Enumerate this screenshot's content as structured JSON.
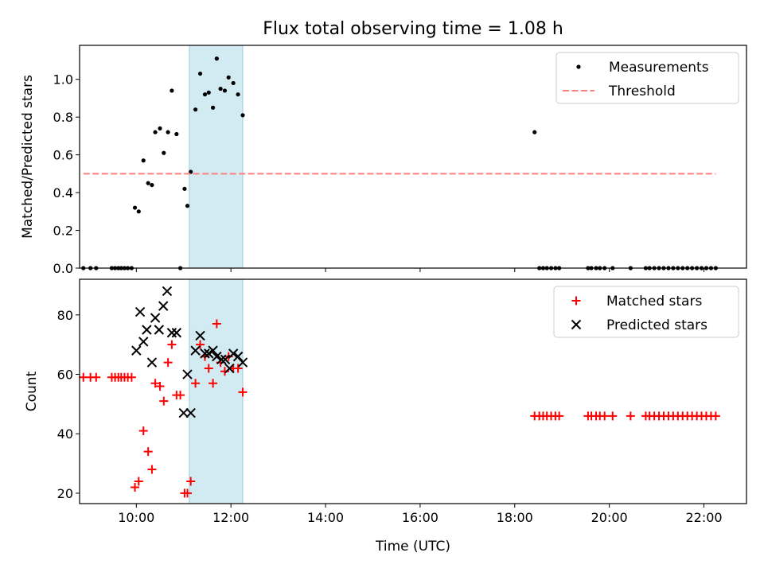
{
  "title": "Flux total observing time = 1.08 h",
  "chart_data": [
    {
      "type": "scatter",
      "panel": "top",
      "title": "Flux total observing time = 1.08 h",
      "xlabel": "",
      "ylabel": "Matched/Predicted stars",
      "xlim": [
        8.8,
        22.9
      ],
      "ylim": [
        0.0,
        1.18
      ],
      "yticks": [
        0.0,
        0.2,
        0.4,
        0.6,
        0.8,
        1.0
      ],
      "ytick_labels": [
        "0.0",
        "0.2",
        "0.4",
        "0.6",
        "0.8",
        "1.0"
      ],
      "xticks": [
        10,
        12,
        14,
        16,
        18,
        20,
        22
      ],
      "highlight_span": [
        11.12,
        12.25
      ],
      "highlight_color": "#add8e6",
      "legend": {
        "position": "top-right",
        "entries": [
          "Measurements",
          "Threshold"
        ]
      },
      "series": [
        {
          "name": "Measurements",
          "kind": "scatter",
          "color": "#000000",
          "x": [
            8.88,
            9.03,
            9.15,
            9.48,
            9.55,
            9.62,
            9.68,
            9.75,
            9.82,
            9.9,
            9.97,
            10.05,
            10.15,
            10.25,
            10.33,
            10.4,
            10.5,
            10.58,
            10.67,
            10.75,
            10.85,
            10.93,
            11.02,
            11.08,
            11.15,
            11.25,
            11.35,
            11.45,
            11.53,
            11.62,
            11.7,
            11.78,
            11.87,
            11.95,
            12.05,
            12.15,
            12.25,
            18.42,
            18.52,
            18.6,
            18.68,
            18.77,
            18.86,
            18.94,
            19.55,
            19.62,
            19.72,
            19.8,
            19.9,
            20.07,
            20.45,
            20.77,
            20.85,
            20.95,
            21.05,
            21.15,
            21.25,
            21.35,
            21.45,
            21.55,
            21.65,
            21.75,
            21.85,
            21.95,
            22.05,
            22.15,
            22.25
          ],
          "y": [
            0.0,
            0.0,
            0.0,
            0.0,
            0.0,
            0.0,
            0.0,
            0.0,
            0.0,
            0.0,
            0.32,
            0.3,
            0.57,
            0.45,
            0.44,
            0.72,
            0.74,
            0.61,
            0.72,
            0.94,
            0.71,
            0.0,
            0.42,
            0.33,
            0.51,
            0.84,
            1.03,
            0.92,
            0.93,
            0.85,
            1.11,
            0.95,
            0.94,
            1.01,
            0.98,
            0.92,
            0.81,
            0.72,
            0.0,
            0.0,
            0.0,
            0.0,
            0.0,
            0.0,
            0.0,
            0.0,
            0.0,
            0.0,
            0.0,
            0.0,
            0.0,
            0.0,
            0.0,
            0.0,
            0.0,
            0.0,
            0.0,
            0.0,
            0.0,
            0.0,
            0.0,
            0.0,
            0.0,
            0.0,
            0.0,
            0.0,
            0.0
          ]
        },
        {
          "name": "Threshold",
          "kind": "dashed-line",
          "color": "#ff7f7f",
          "x": [
            8.88,
            22.25
          ],
          "y": [
            0.5,
            0.5
          ]
        }
      ]
    },
    {
      "type": "scatter",
      "panel": "bottom",
      "xlabel": "Time (UTC)",
      "ylabel": "Count",
      "xlim": [
        8.8,
        22.9
      ],
      "ylim": [
        16.5,
        92
      ],
      "yticks": [
        20,
        40,
        60,
        80
      ],
      "ytick_labels": [
        "20",
        "40",
        "60",
        "80"
      ],
      "xticks": [
        10,
        12,
        14,
        16,
        18,
        20,
        22
      ],
      "xtick_labels": [
        "10:00",
        "12:00",
        "14:00",
        "16:00",
        "18:00",
        "20:00",
        "22:00"
      ],
      "highlight_span": [
        11.12,
        12.25
      ],
      "highlight_color": "#add8e6",
      "legend": {
        "position": "top-right",
        "entries": [
          "Matched stars",
          "Predicted stars"
        ]
      },
      "series": [
        {
          "name": "Matched stars",
          "kind": "plus",
          "color": "#ff0000",
          "x": [
            8.88,
            9.03,
            9.15,
            9.48,
            9.55,
            9.62,
            9.68,
            9.75,
            9.82,
            9.9,
            9.97,
            10.05,
            10.15,
            10.25,
            10.33,
            10.4,
            10.5,
            10.58,
            10.67,
            10.75,
            10.85,
            10.93,
            11.02,
            11.08,
            11.15,
            11.25,
            11.35,
            11.45,
            11.53,
            11.62,
            11.7,
            11.78,
            11.87,
            11.95,
            12.05,
            12.15,
            12.25,
            18.42,
            18.52,
            18.6,
            18.68,
            18.77,
            18.86,
            18.94,
            19.55,
            19.62,
            19.72,
            19.8,
            19.9,
            20.07,
            20.45,
            20.77,
            20.85,
            20.95,
            21.05,
            21.15,
            21.25,
            21.35,
            21.45,
            21.55,
            21.65,
            21.75,
            21.85,
            21.95,
            22.05,
            22.15,
            22.25
          ],
          "y": [
            59,
            59,
            59,
            59,
            59,
            59,
            59,
            59,
            59,
            59,
            22,
            24,
            41,
            34,
            28,
            57,
            56,
            51,
            64,
            70,
            53,
            53,
            20,
            20,
            24,
            57,
            70,
            66,
            62,
            57,
            77,
            64,
            61,
            66,
            62,
            62,
            54,
            46,
            46,
            46,
            46,
            46,
            46,
            46,
            46,
            46,
            46,
            46,
            46,
            46,
            46,
            46,
            46,
            46,
            46,
            46,
            46,
            46,
            46,
            46,
            46,
            46,
            46,
            46,
            46,
            46,
            46
          ]
        },
        {
          "name": "Predicted stars",
          "kind": "x",
          "color": "#000000",
          "x": [
            10.0,
            10.08,
            10.15,
            10.22,
            10.33,
            10.4,
            10.48,
            10.57,
            10.65,
            10.75,
            10.85,
            11.0,
            11.08,
            11.15,
            11.25,
            11.35,
            11.45,
            11.53,
            11.62,
            11.7,
            11.8,
            11.88,
            11.97,
            12.05,
            12.15,
            12.25
          ],
          "y": [
            68,
            81,
            71,
            75,
            64,
            79,
            75,
            83,
            88,
            74,
            74,
            47,
            60,
            47,
            68,
            73,
            67,
            67,
            68,
            66,
            65,
            65,
            62,
            67,
            66,
            64
          ]
        }
      ]
    }
  ]
}
